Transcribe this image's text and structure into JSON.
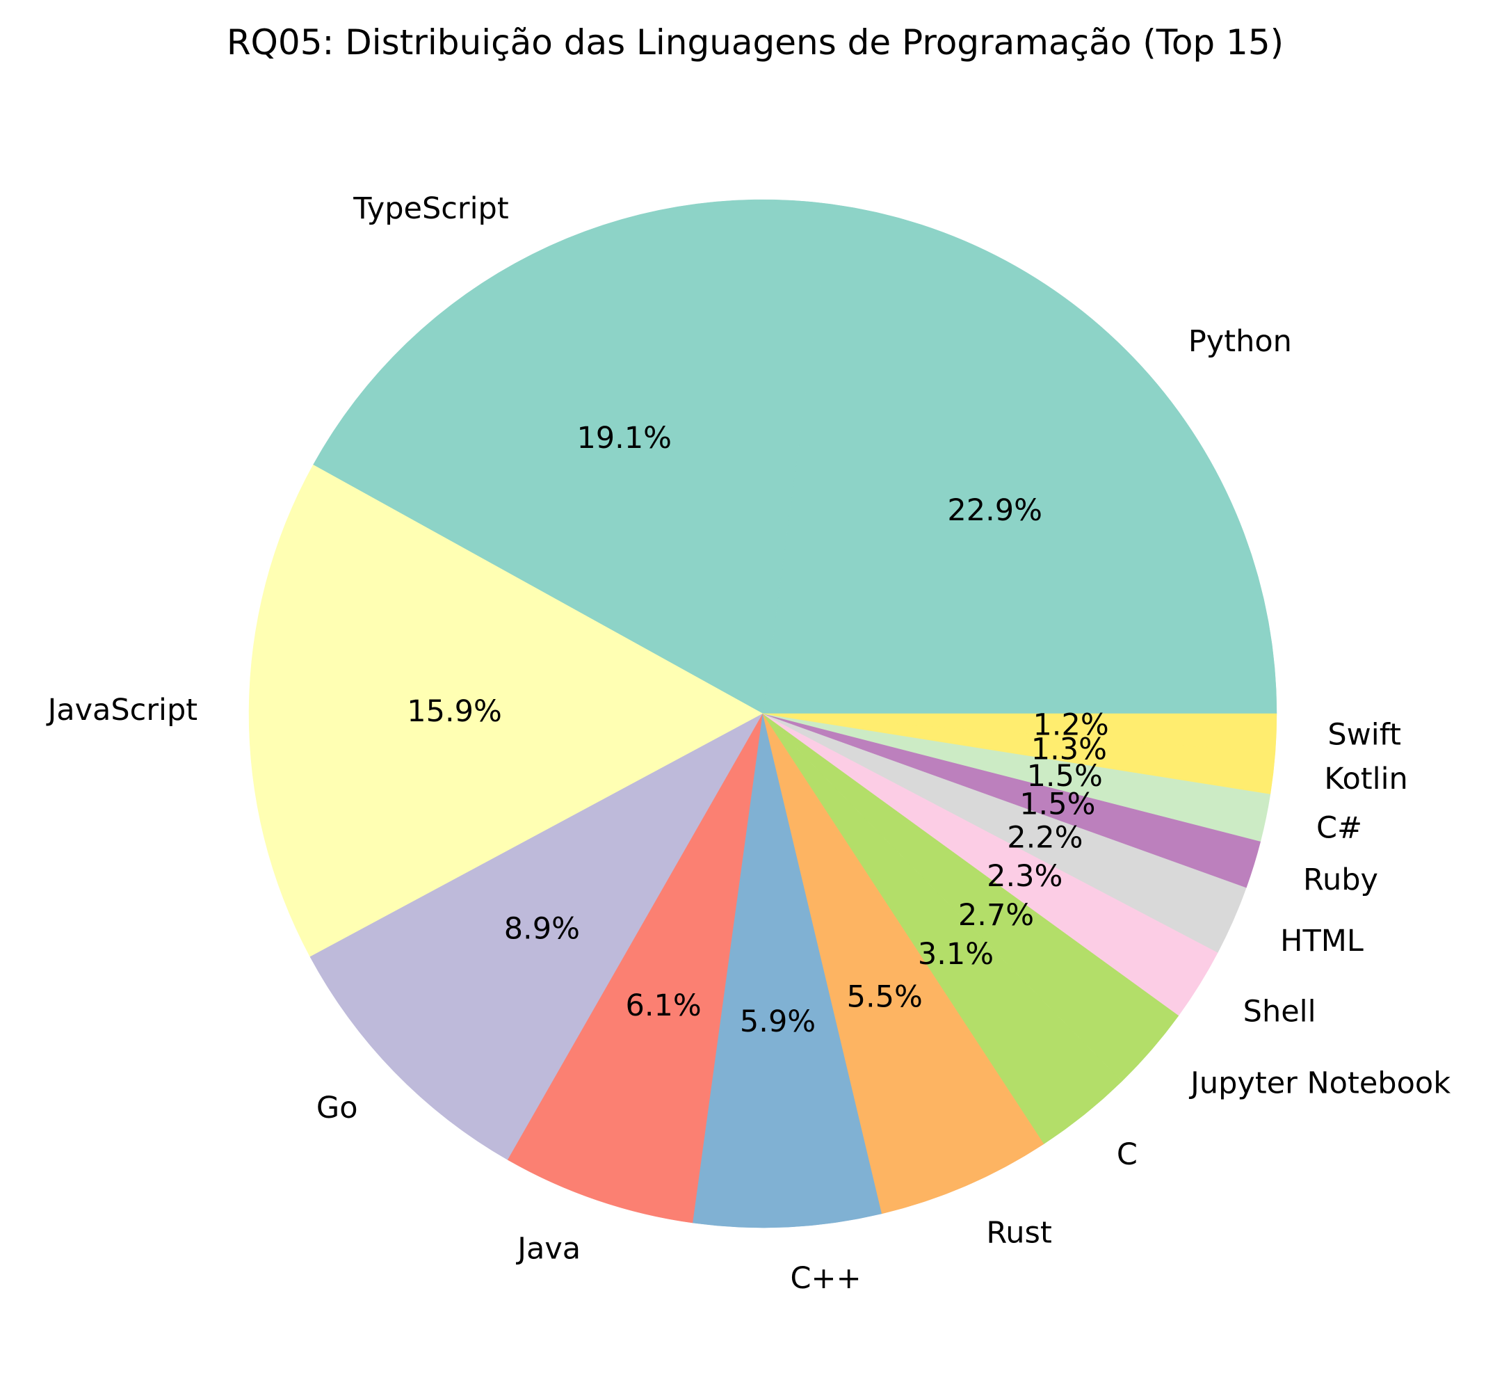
{
  "chart_data": {
    "type": "pie",
    "title": "RQ05: Distribuição das Linguagens de Programação (Top 15)",
    "start_angle_deg": 0,
    "direction": "counterclockwise",
    "slices": [
      {
        "label": "Python",
        "percent": 22.9,
        "pct_label": "22.9%",
        "color": "#8dd3c7"
      },
      {
        "label": "TypeScript",
        "percent": 19.1,
        "pct_label": "19.1%",
        "color": "#8dd3c7"
      },
      {
        "label": "JavaScript",
        "percent": 15.9,
        "pct_label": "15.9%",
        "color": "#ffffb3"
      },
      {
        "label": "Go",
        "percent": 8.9,
        "pct_label": "8.9%",
        "color": "#bebada"
      },
      {
        "label": "Java",
        "percent": 6.1,
        "pct_label": "6.1%",
        "color": "#fb8072"
      },
      {
        "label": "C++",
        "percent": 5.9,
        "pct_label": "5.9%",
        "color": "#80b1d3"
      },
      {
        "label": "Rust",
        "percent": 5.5,
        "pct_label": "5.5%",
        "color": "#fdb462"
      },
      {
        "label": "C",
        "percent": 3.1,
        "pct_label": "3.1%",
        "color": "#b3de69"
      },
      {
        "label": "Jupyter Notebook",
        "percent": 2.7,
        "pct_label": "2.7%",
        "color": "#b3de69"
      },
      {
        "label": "Shell",
        "percent": 2.3,
        "pct_label": "2.3%",
        "color": "#fccde5"
      },
      {
        "label": "HTML",
        "percent": 2.2,
        "pct_label": "2.2%",
        "color": "#d9d9d9"
      },
      {
        "label": "Ruby",
        "percent": 1.5,
        "pct_label": "1.5%",
        "color": "#bc80bd"
      },
      {
        "label": "C#",
        "percent": 1.5,
        "pct_label": "1.5%",
        "color": "#ccebc5"
      },
      {
        "label": "Kotlin",
        "percent": 1.3,
        "pct_label": "1.3%",
        "color": "#ffed6f"
      },
      {
        "label": "Swift",
        "percent": 1.2,
        "pct_label": "1.2%",
        "color": "#ffed6f"
      }
    ]
  }
}
